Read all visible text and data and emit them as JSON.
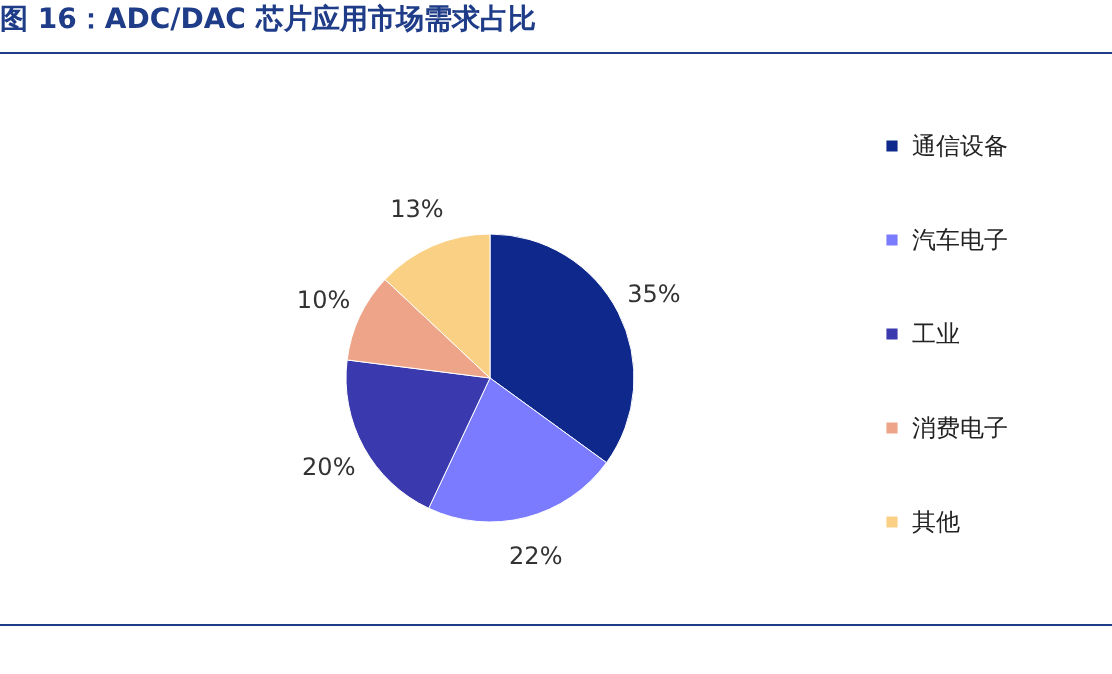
{
  "chart_data": {
    "type": "pie",
    "title": "图 16：ADC/DAC 芯片应用市场需求占比",
    "categories": [
      "通信设备",
      "汽车电子",
      "工业",
      "消费电子",
      "其他"
    ],
    "values": [
      35,
      22,
      20,
      10,
      13
    ],
    "value_labels": [
      "35%",
      "22%",
      "20%",
      "10%",
      "13%"
    ],
    "colors": [
      "#0f288c",
      "#7b7bff",
      "#3a3aae",
      "#eea488",
      "#fad184"
    ],
    "legend": "right"
  }
}
